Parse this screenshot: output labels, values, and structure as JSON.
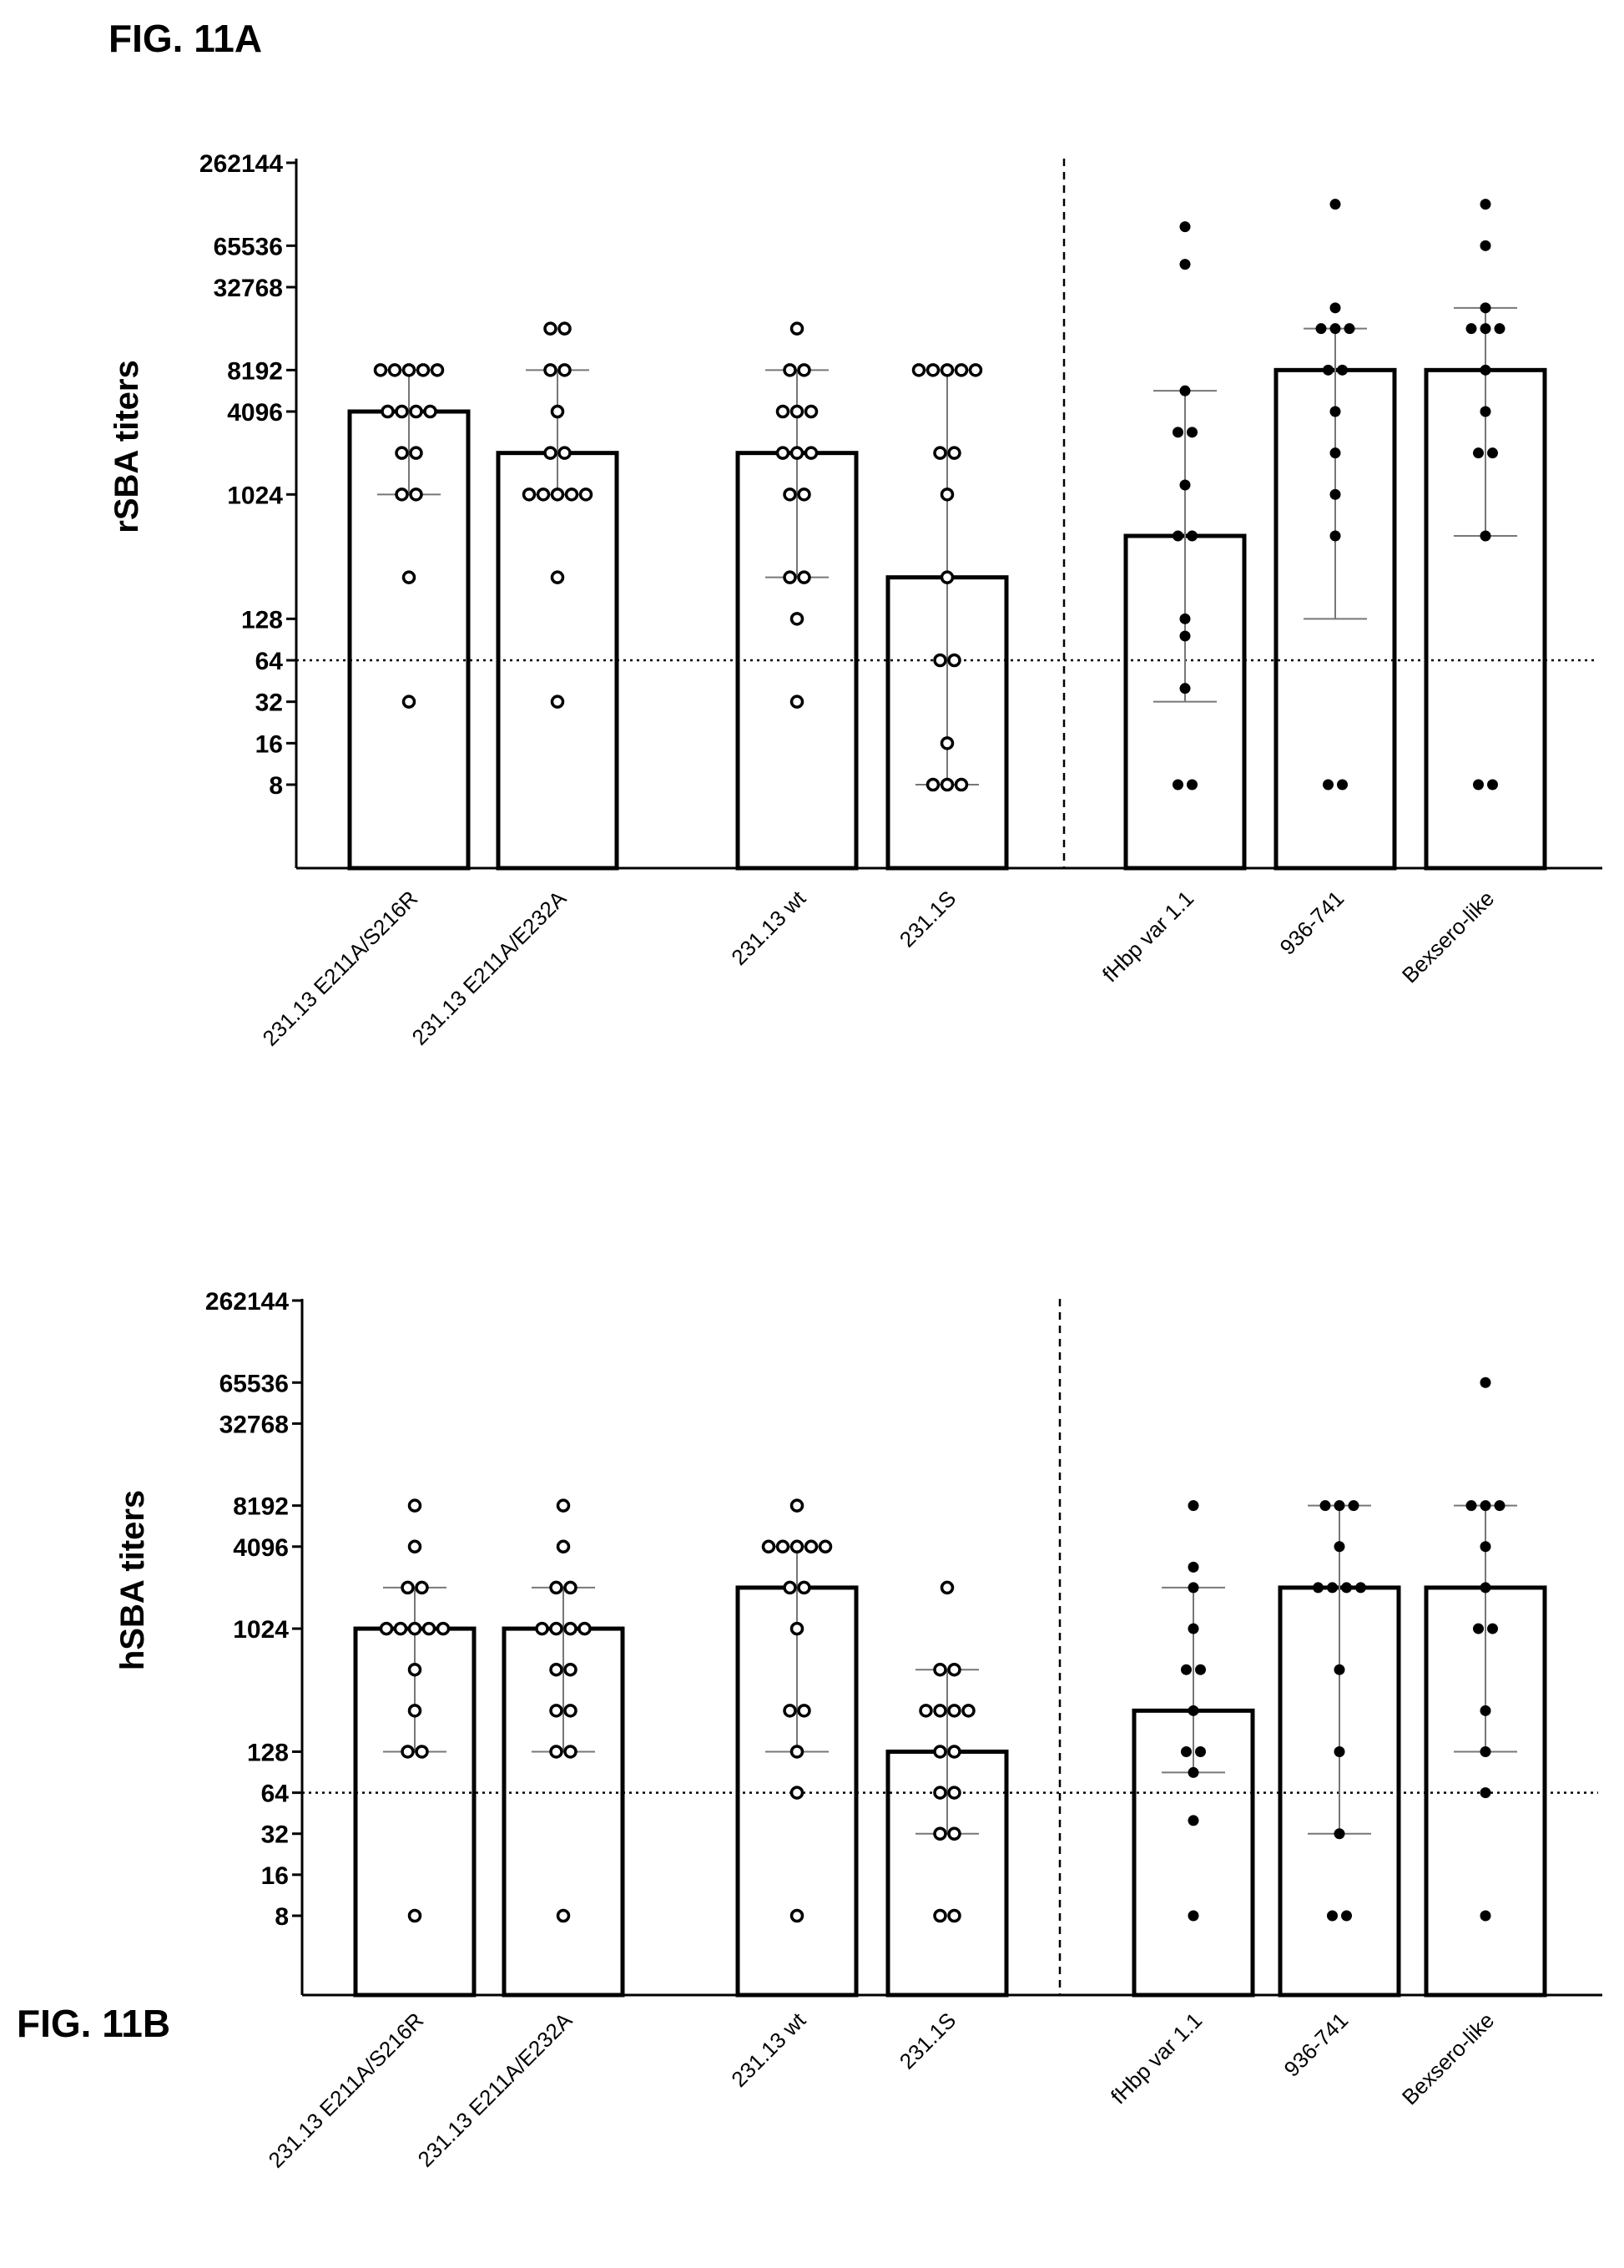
{
  "figure_labels": {
    "top": "FIG. 11A",
    "bottom": "FIG. 11B"
  },
  "colors": {
    "ink": "#000000",
    "whisker": "#777777",
    "background": "#ffffff"
  },
  "chart_data": [
    {
      "type": "bar",
      "ylabel": "rSBA titers",
      "yscale": "log2",
      "yticks": [
        8,
        16,
        32,
        64,
        128,
        1024,
        4096,
        8192,
        32768,
        65536,
        262144
      ],
      "ytick_labels": [
        "8",
        "16",
        "32",
        "64",
        "128",
        "1024",
        "4096",
        "8192",
        "32768",
        "65536",
        "262144"
      ],
      "threshold": 64,
      "categories": [
        "231.13 E211A/S216R",
        "231.13 E211A/E232A",
        "231.13 wt",
        "231.1S",
        "fHbp var 1.1",
        "936-741",
        "Bexsero-like"
      ],
      "groups": [
        [
          0,
          1
        ],
        [
          2,
          3
        ],
        [
          4,
          5,
          6
        ]
      ],
      "divider_after_category": 3,
      "bar_values": [
        4096,
        2048,
        2048,
        256,
        512,
        8192,
        8192
      ],
      "error_low": [
        1024,
        1024,
        256,
        8,
        32,
        128,
        512
      ],
      "error_high": [
        8192,
        8192,
        8192,
        8192,
        5793,
        16384,
        23170
      ],
      "marker_fill": [
        "open",
        "open",
        "open",
        "open",
        "filled",
        "filled",
        "filled"
      ],
      "points": [
        [
          8192,
          8192,
          8192,
          8192,
          8192,
          4096,
          4096,
          4096,
          4096,
          2048,
          2048,
          1024,
          1024,
          256,
          32
        ],
        [
          16384,
          16384,
          8192,
          8192,
          4096,
          2048,
          2048,
          1024,
          1024,
          1024,
          1024,
          1024,
          256,
          32
        ],
        [
          16384,
          8192,
          8192,
          4096,
          4096,
          4096,
          2048,
          2048,
          2048,
          1024,
          1024,
          256,
          256,
          128,
          32
        ],
        [
          8192,
          8192,
          8192,
          8192,
          8192,
          2048,
          2048,
          1024,
          256,
          64,
          64,
          16,
          8,
          8,
          8
        ],
        [
          90000,
          48000,
          5793,
          2896,
          2896,
          1200,
          512,
          512,
          128,
          96,
          40,
          8,
          8
        ],
        [
          131072,
          23170,
          16384,
          16384,
          16384,
          8192,
          8192,
          4096,
          2048,
          1024,
          512,
          8,
          8
        ],
        [
          131072,
          65536,
          23170,
          16384,
          16384,
          16384,
          8192,
          4096,
          2048,
          2048,
          512,
          8,
          8
        ]
      ]
    },
    {
      "type": "bar",
      "ylabel": "hSBA titers",
      "yscale": "log2",
      "yticks": [
        8,
        16,
        32,
        64,
        128,
        1024,
        4096,
        8192,
        32768,
        65536,
        262144
      ],
      "ytick_labels": [
        "8",
        "16",
        "32",
        "64",
        "128",
        "1024",
        "4096",
        "8192",
        "32768",
        "65536",
        "262144"
      ],
      "threshold": 64,
      "categories": [
        "231.13 E211A/S216R",
        "231.13 E211A/E232A",
        "231.13 wt",
        "231.1S",
        "fHbp var 1.1",
        "936-741",
        "Bexsero-like"
      ],
      "groups": [
        [
          0,
          1
        ],
        [
          2,
          3
        ],
        [
          4,
          5,
          6
        ]
      ],
      "divider_after_category": 3,
      "bar_values": [
        1024,
        1024,
        2048,
        128,
        256,
        2048,
        2048
      ],
      "error_low": [
        128,
        128,
        128,
        32,
        90,
        32,
        128
      ],
      "error_high": [
        2048,
        2048,
        4096,
        512,
        2048,
        8192,
        8192
      ],
      "marker_fill": [
        "open",
        "open",
        "open",
        "open",
        "filled",
        "filled",
        "filled"
      ],
      "points": [
        [
          8192,
          4096,
          2048,
          2048,
          1024,
          1024,
          1024,
          1024,
          1024,
          512,
          256,
          128,
          128,
          8
        ],
        [
          8192,
          4096,
          2048,
          2048,
          1024,
          1024,
          1024,
          1024,
          512,
          512,
          256,
          256,
          128,
          128,
          8
        ],
        [
          8192,
          4096,
          4096,
          4096,
          4096,
          4096,
          2048,
          2048,
          1024,
          256,
          256,
          128,
          64,
          8
        ],
        [
          2048,
          512,
          512,
          256,
          256,
          256,
          256,
          128,
          128,
          64,
          64,
          32,
          32,
          8,
          8
        ],
        [
          8192,
          2896,
          2048,
          1024,
          512,
          512,
          256,
          128,
          128,
          90,
          40,
          8
        ],
        [
          8192,
          8192,
          8192,
          4096,
          2048,
          2048,
          2048,
          2048,
          512,
          128,
          32,
          8,
          8
        ],
        [
          65536,
          8192,
          8192,
          8192,
          4096,
          2048,
          1024,
          1024,
          256,
          128,
          64,
          8
        ]
      ]
    }
  ]
}
